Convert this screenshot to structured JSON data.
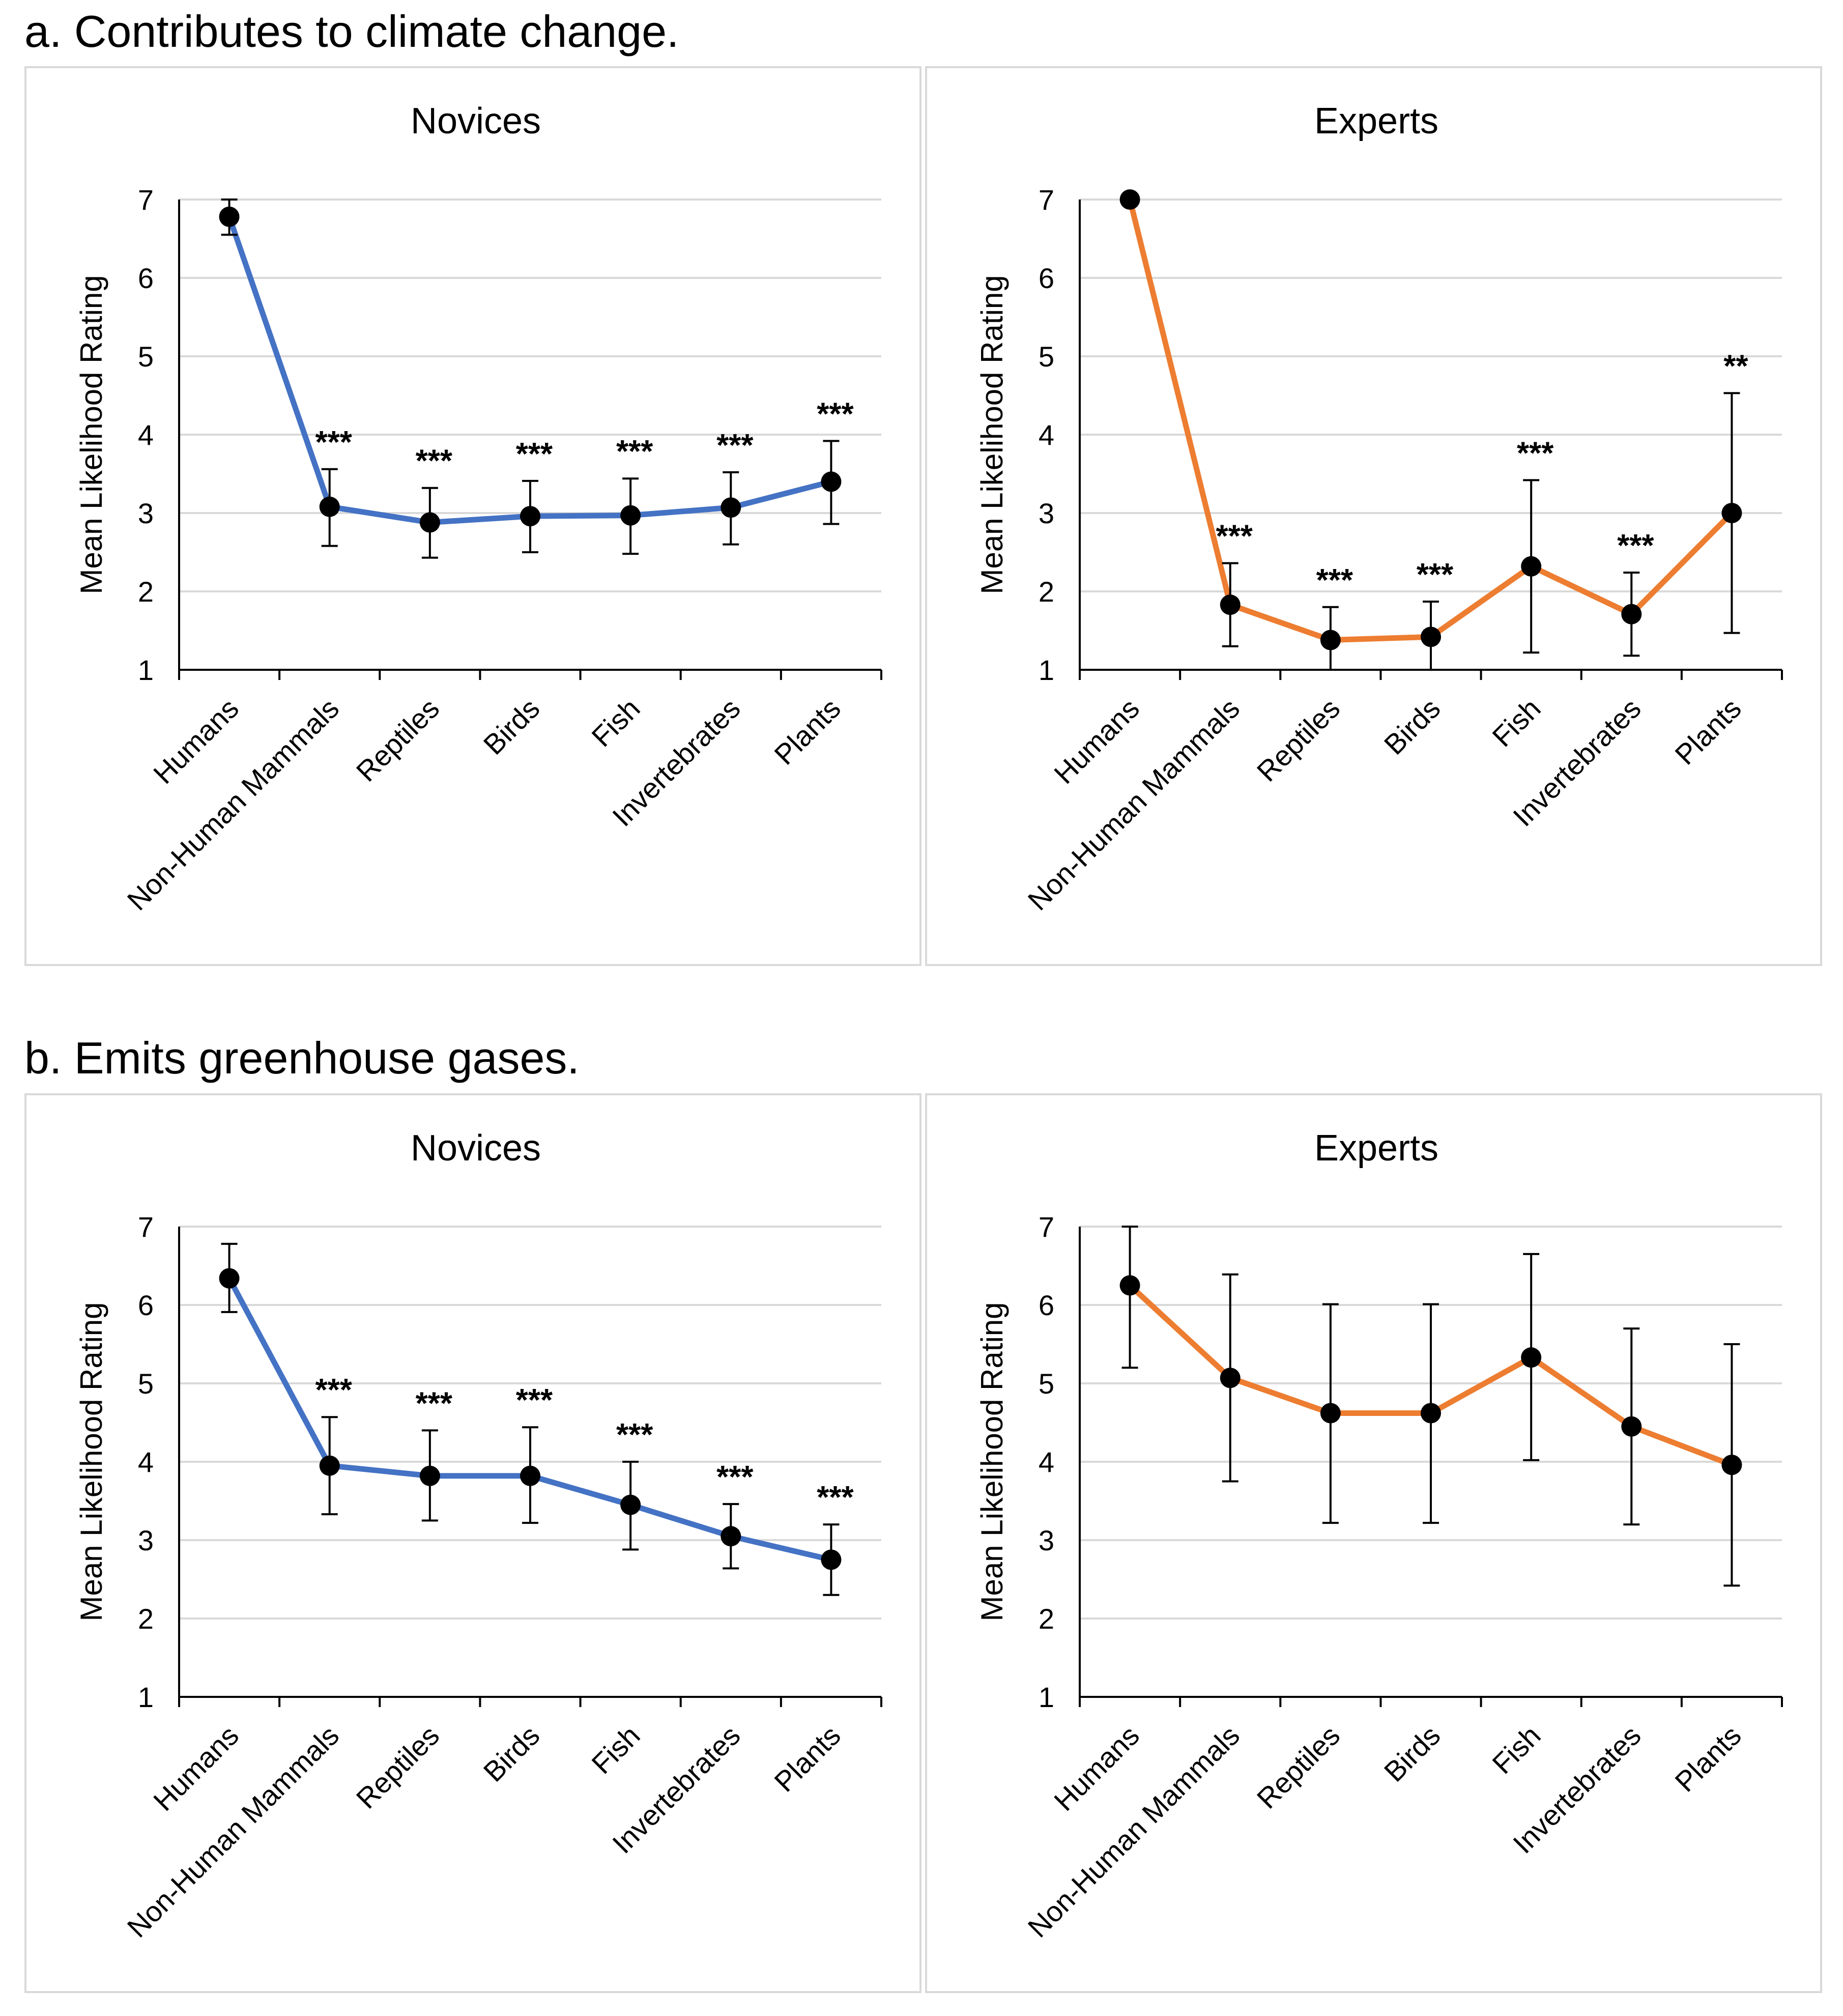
{
  "sections": [
    {
      "label": "a. Contributes to climate change."
    },
    {
      "label": "b. Emits greenhouse gases."
    }
  ],
  "colors": {
    "novices": "#4472c4",
    "experts": "#ed7d31",
    "marker": "#000000",
    "grid": "#d9d9d9"
  },
  "chart_data": [
    {
      "type": "line",
      "panel": "a",
      "title": "Novices",
      "ylabel": "Mean Likelihood Rating",
      "xlabel": "",
      "ylim": [
        1,
        7
      ],
      "yticks": [
        1,
        2,
        3,
        4,
        5,
        6,
        7
      ],
      "grid": true,
      "color": "#4472c4",
      "categories": [
        "Humans",
        "Non-Human Mammals",
        "Reptiles",
        "Birds",
        "Fish",
        "Invertebrates",
        "Plants"
      ],
      "values": [
        6.78,
        3.08,
        2.88,
        2.96,
        2.97,
        3.07,
        3.4
      ],
      "error_low": [
        6.55,
        2.58,
        2.43,
        2.5,
        2.48,
        2.6,
        2.86
      ],
      "error_high": [
        7.0,
        3.56,
        3.32,
        3.41,
        3.44,
        3.52,
        3.92
      ],
      "annotations": [
        "",
        "***",
        "***",
        "***",
        "***",
        "***",
        "***"
      ]
    },
    {
      "type": "line",
      "panel": "a",
      "title": "Experts",
      "ylabel": "Mean Likelihood Rating",
      "xlabel": "",
      "ylim": [
        1,
        7
      ],
      "yticks": [
        1,
        2,
        3,
        4,
        5,
        6,
        7
      ],
      "grid": true,
      "color": "#ed7d31",
      "categories": [
        "Humans",
        "Non-Human Mammals",
        "Reptiles",
        "Birds",
        "Fish",
        "Invertebrates",
        "Plants"
      ],
      "values": [
        7.0,
        1.83,
        1.38,
        1.42,
        2.32,
        1.71,
        3.0
      ],
      "error_low": [
        7.0,
        1.3,
        1.0,
        1.0,
        1.22,
        1.18,
        1.47
      ],
      "error_high": [
        7.0,
        2.36,
        1.8,
        1.87,
        3.42,
        2.24,
        4.53
      ],
      "annotations": [
        "",
        "***",
        "***",
        "***",
        "***",
        "***",
        "**"
      ]
    },
    {
      "type": "line",
      "panel": "b",
      "title": "Novices",
      "ylabel": "Mean Likelihood Rating",
      "xlabel": "",
      "ylim": [
        1,
        7
      ],
      "yticks": [
        1,
        2,
        3,
        4,
        5,
        6,
        7
      ],
      "grid": true,
      "color": "#4472c4",
      "categories": [
        "Humans",
        "Non-Human Mammals",
        "Reptiles",
        "Birds",
        "Fish",
        "Invertebrates",
        "Plants"
      ],
      "values": [
        6.34,
        3.95,
        3.82,
        3.82,
        3.45,
        3.05,
        2.75
      ],
      "error_low": [
        5.91,
        3.33,
        3.25,
        3.22,
        2.88,
        2.64,
        2.3
      ],
      "error_high": [
        6.78,
        4.57,
        4.4,
        4.44,
        4.0,
        3.46,
        3.2
      ],
      "annotations": [
        "",
        "***",
        "***",
        "***",
        "***",
        "***",
        "***"
      ]
    },
    {
      "type": "line",
      "panel": "b",
      "title": "Experts",
      "ylabel": "Mean Likelihood Rating",
      "xlabel": "",
      "ylim": [
        1,
        7
      ],
      "yticks": [
        1,
        2,
        3,
        4,
        5,
        6,
        7
      ],
      "grid": true,
      "color": "#ed7d31",
      "categories": [
        "Humans",
        "Non-Human Mammals",
        "Reptiles",
        "Birds",
        "Fish",
        "Invertebrates",
        "Plants"
      ],
      "values": [
        6.25,
        5.07,
        4.62,
        4.62,
        5.33,
        4.45,
        3.96
      ],
      "error_low": [
        5.2,
        3.75,
        3.22,
        3.22,
        4.02,
        3.2,
        2.42
      ],
      "error_high": [
        7.0,
        6.39,
        6.01,
        6.01,
        6.65,
        5.7,
        5.5
      ],
      "annotations": [
        "",
        "",
        "",
        "",
        "",
        "",
        ""
      ]
    }
  ]
}
